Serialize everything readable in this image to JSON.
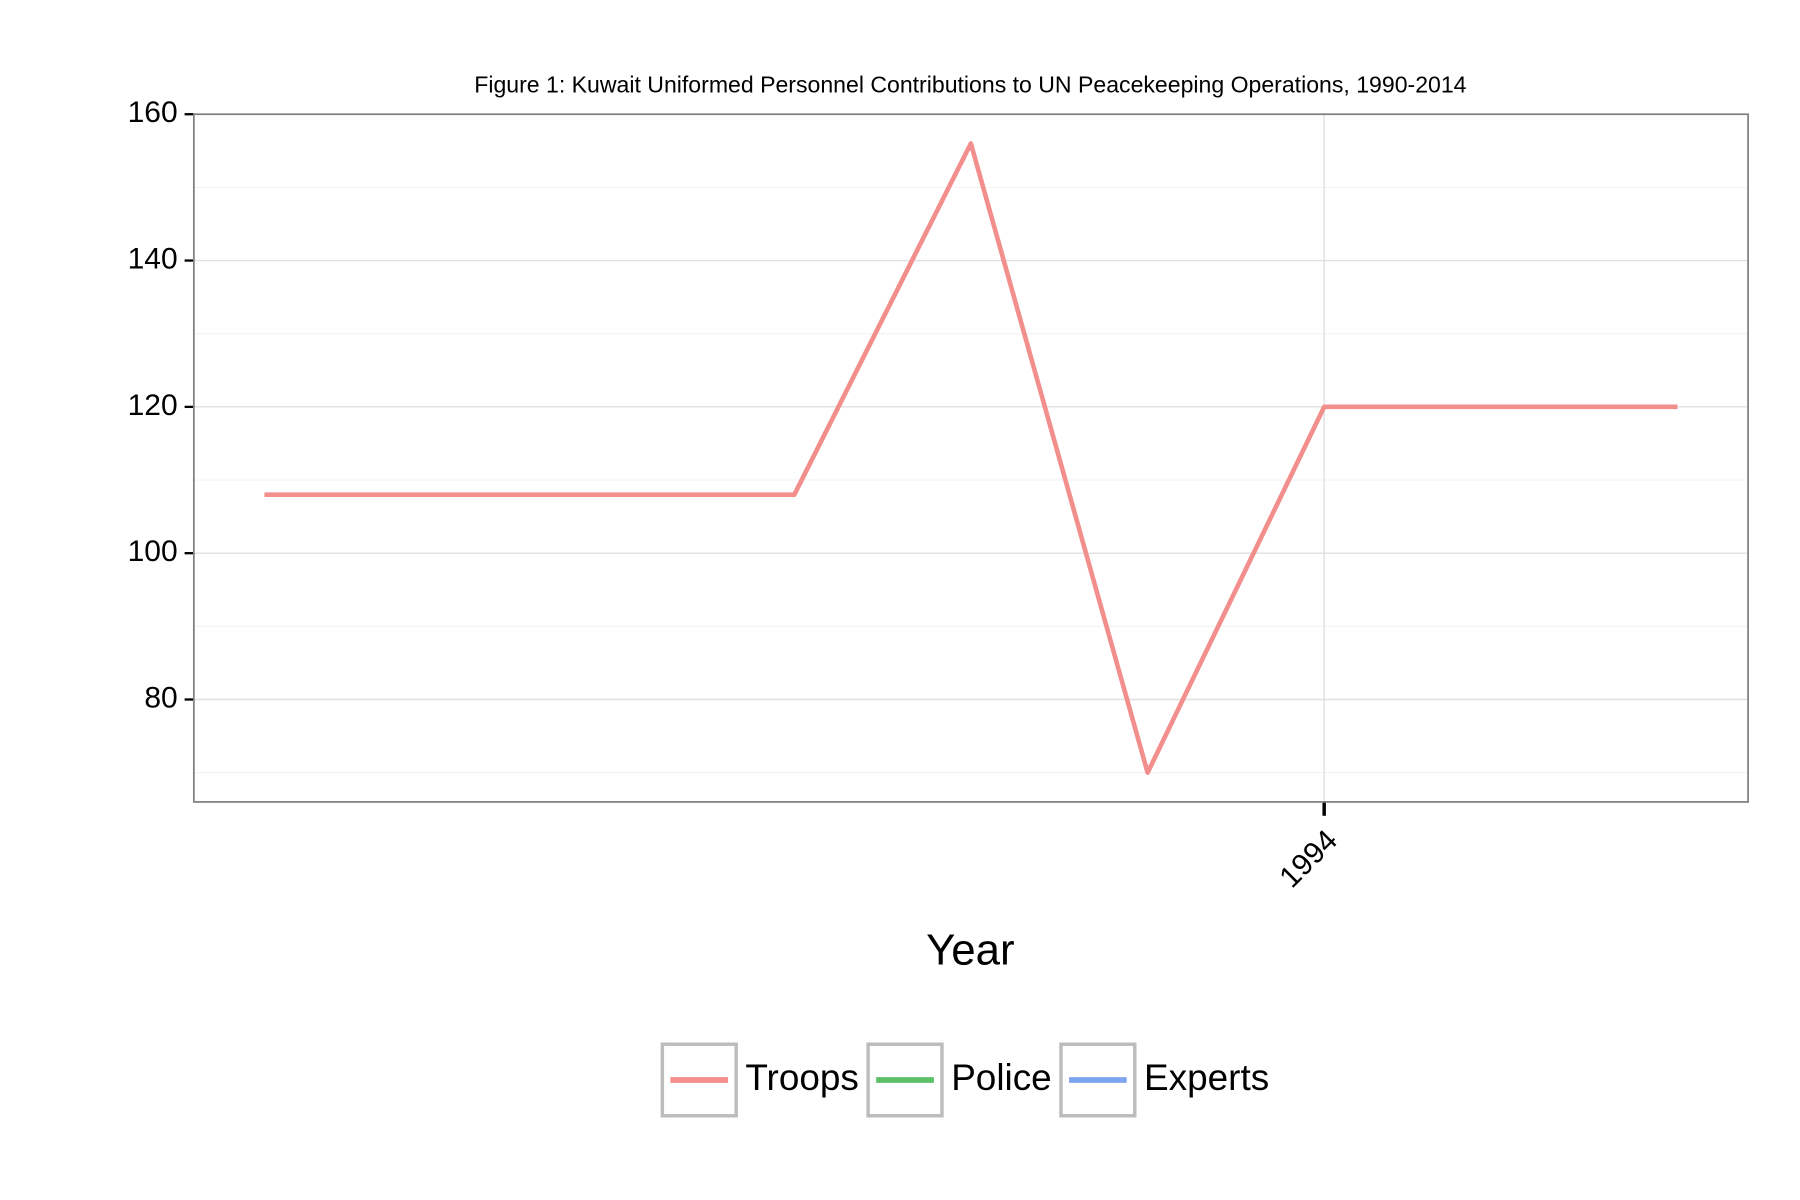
{
  "chart_data": {
    "type": "line",
    "title": "Figure 1: Kuwait Uniformed Personnel Contributions to UN Peacekeeping Operations, 1990-2014",
    "x_label": "Year",
    "x": [
      1993.5,
      1993.75,
      1993.8333,
      1993.9167,
      1994.0,
      1994.1667
    ],
    "series": [
      {
        "name": "Troops",
        "color": "#f28e8c",
        "values": [
          108,
          108,
          156,
          70,
          120,
          120
        ]
      },
      {
        "name": "Police",
        "color": "#5cbf6a"
      },
      {
        "name": "Experts",
        "color": "#7ea6f0"
      }
    ],
    "xlim": [
      1993.4667,
      1994.2
    ],
    "xticks": [
      1994
    ],
    "ylim": [
      66,
      160
    ],
    "yticks": [
      80,
      100,
      120,
      140,
      160
    ],
    "grid": true,
    "legend": "bottom"
  }
}
